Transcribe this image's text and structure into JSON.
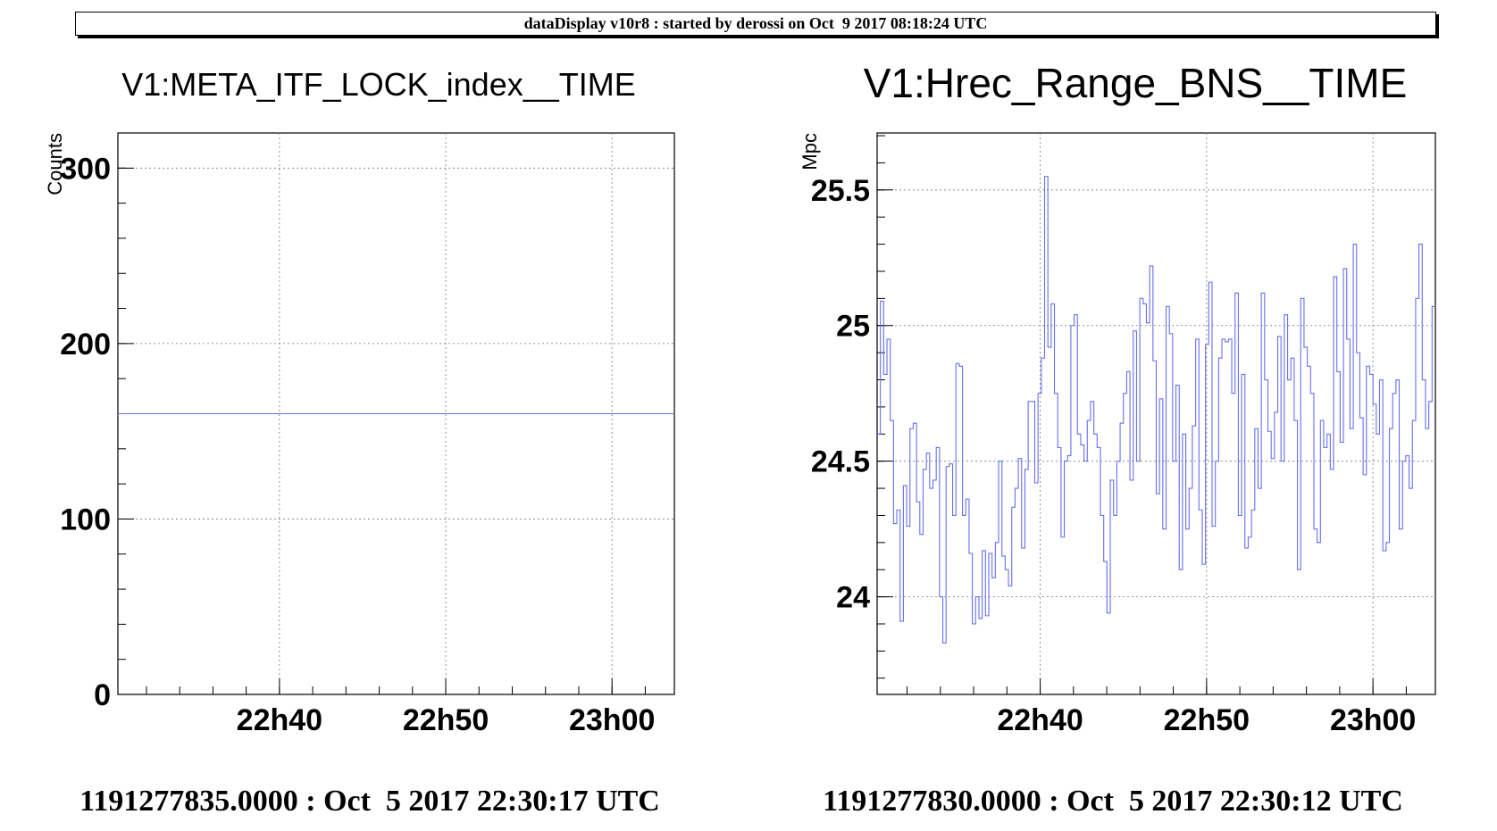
{
  "header": {
    "title": "dataDisplay v10r8 : started by derossi on Oct  9 2017 08:18:24 UTC"
  },
  "chart_data": [
    {
      "type": "line",
      "title": "V1:META_ITF_LOCK_index__TIME",
      "xlabel": "",
      "ylabel": "Counts",
      "xlim": [
        "22:30:17",
        "23:03:45"
      ],
      "ylim": [
        0,
        320
      ],
      "x_ticks": [
        "22h40",
        "22h50",
        "23h00"
      ],
      "y_ticks": [
        "0",
        "100",
        "200",
        "300"
      ],
      "grid": true,
      "color": "#6670ee",
      "series": [
        {
          "x_start": "22:30:17",
          "x_end": "23:03:45",
          "values": [
            160
          ]
        }
      ],
      "footer": "1191277835.0000 : Oct  5 2017 22:30:17 UTC"
    },
    {
      "type": "line",
      "title": "V1:Hrec_Range_BNS__TIME",
      "xlabel": "",
      "ylabel": "Mpc",
      "xlim": [
        "22:30:12",
        "23:03:45"
      ],
      "ylim": [
        23.64,
        25.71
      ],
      "x_ticks": [
        "22h40",
        "22h50",
        "23h00"
      ],
      "y_ticks": [
        "24",
        "24.5",
        "25",
        "25.5"
      ],
      "grid": true,
      "color": "#6670ee",
      "series": [
        {
          "x_start": "22:30:12",
          "x_end": "23:03:45",
          "values": [
            24.6,
            25.09,
            24.82,
            24.95,
            24.65,
            24.27,
            24.32,
            23.91,
            24.41,
            24.26,
            24.62,
            24.64,
            24.35,
            24.23,
            24.47,
            24.53,
            24.4,
            24.43,
            24.55,
            24.0,
            23.83,
            24.48,
            24.49,
            24.3,
            24.86,
            24.85,
            24.3,
            24.36,
            24.16,
            23.9,
            24.0,
            23.92,
            24.17,
            23.93,
            24.16,
            24.07,
            24.2,
            24.5,
            24.15,
            24.1,
            24.04,
            24.33,
            24.4,
            24.51,
            24.18,
            24.47,
            24.72,
            24.72,
            24.42,
            24.75,
            24.88,
            25.55,
            24.92,
            25.08,
            24.75,
            24.55,
            24.22,
            24.5,
            24.52,
            25.0,
            25.04,
            24.6,
            24.56,
            24.5,
            24.65,
            24.72,
            24.6,
            24.55,
            24.3,
            24.13,
            23.94,
            24.43,
            24.3,
            24.5,
            24.64,
            24.75,
            24.83,
            24.43,
            24.98,
            24.5,
            25.1,
            25.08,
            25.01,
            25.22,
            24.87,
            24.38,
            24.73,
            24.25,
            25.07,
            24.97,
            24.5,
            24.78,
            24.1,
            24.6,
            24.25,
            24.4,
            24.63,
            24.95,
            24.32,
            24.12,
            24.93,
            25.16,
            24.26,
            24.5,
            24.88,
            24.95,
            24.94,
            24.95,
            24.75,
            25.12,
            24.3,
            24.82,
            24.18,
            24.22,
            24.32,
            24.62,
            24.4,
            25.12,
            24.8,
            24.61,
            24.51,
            24.68,
            24.96,
            24.5,
            25.04,
            24.8,
            24.88,
            24.65,
            24.1,
            25.1,
            24.92,
            24.85,
            24.75,
            24.25,
            24.2,
            24.65,
            24.55,
            24.6,
            24.47,
            25.18,
            24.83,
            24.57,
            25.21,
            24.95,
            24.62,
            25.3,
            24.9,
            24.66,
            24.45,
            24.85,
            24.82,
            24.71,
            24.6,
            24.8,
            24.17,
            24.2,
            24.62,
            24.75,
            24.8,
            24.25,
            24.5,
            24.52,
            24.4,
            24.65,
            25.1,
            25.3,
            24.8,
            24.62,
            24.72,
            25.07
          ]
        }
      ],
      "footer": "1191277830.0000 : Oct  5 2017 22:30:12 UTC"
    }
  ]
}
